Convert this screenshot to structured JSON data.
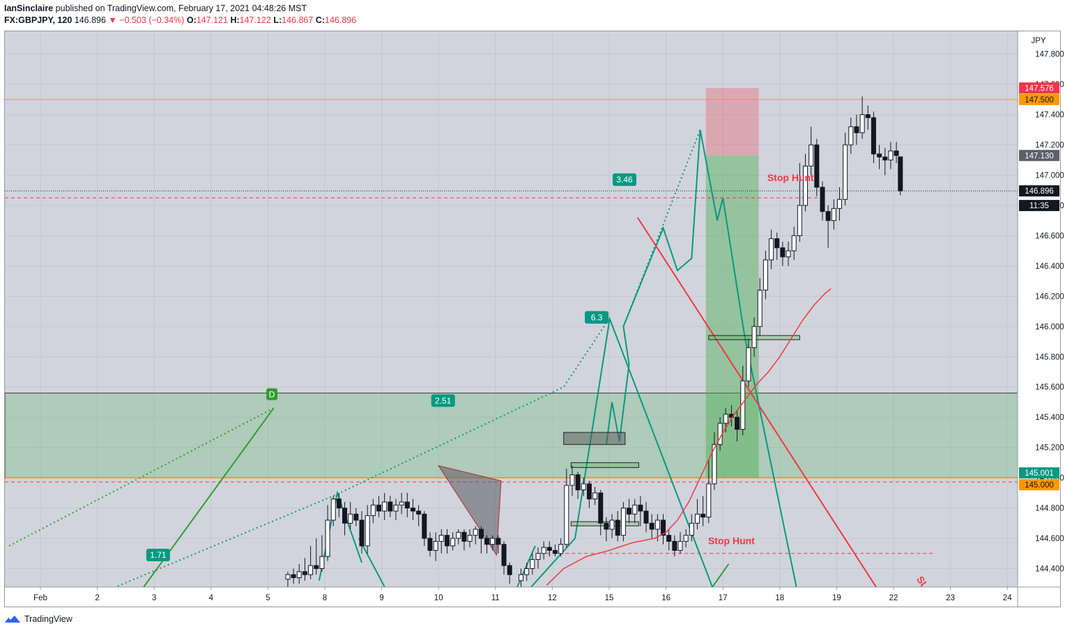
{
  "header": {
    "author": "IanSinclaire",
    "published_text": "published on TradingView.com, February 17, 2021 04:48:26 MST",
    "symbol": "FX:GBPJPY, 120",
    "last": "146.896",
    "change_arrow": "▼",
    "change": "−0.503 (−0.34%)",
    "o_label": "O:",
    "o_value": "147.121",
    "h_label": "H:",
    "h_value": "147.122",
    "l_label": "L:",
    "l_value": "146.867",
    "c_label": "C:",
    "c_value": "146.896"
  },
  "footer": {
    "brand": "TradingView",
    "logo_icon": "tradingview-logo-icon"
  },
  "chart_data": {
    "type": "candlestick",
    "currency": "JPY",
    "ylim": [
      144.275,
      147.92
    ],
    "y_ticks": [
      144.4,
      144.6,
      144.8,
      145.0,
      145.2,
      145.4,
      145.6,
      145.8,
      146.0,
      146.2,
      146.4,
      146.6,
      146.8,
      147.0,
      147.2,
      147.4,
      147.6,
      147.8
    ],
    "y_tick_labels": [
      "144.400",
      "144.600",
      "144.800",
      "145.000",
      "145.200",
      "145.400",
      "145.600",
      "145.800",
      "146.000",
      "146.200",
      "146.400",
      "146.600",
      "146.800",
      "147.000",
      "147.200",
      "147.400",
      "147.600",
      "147.800"
    ],
    "x_labels": [
      "Feb",
      "2",
      "3",
      "4",
      "5",
      "8",
      "9",
      "10",
      "11",
      "12",
      "15",
      "16",
      "17",
      "18",
      "19",
      "22",
      "23",
      "24"
    ],
    "price_labels": [
      {
        "value": 147.576,
        "text": "147.576",
        "bg": "#f23645",
        "fg": "#ffffff"
      },
      {
        "value": 147.5,
        "text": "147.500",
        "bg": "#ff9800",
        "fg": "#131722"
      },
      {
        "value": 147.13,
        "text": "147.130",
        "bg": "#5d606b",
        "fg": "#ffffff"
      },
      {
        "value": 146.896,
        "text": "146.896",
        "bg": "#131722",
        "fg": "#ffffff"
      },
      {
        "value": 146.8,
        "text": "11:35",
        "bg": "#131722",
        "fg": "#ffffff"
      },
      {
        "value": 145.001,
        "text": "145.001",
        "bg": "#089981",
        "fg": "#ffffff"
      },
      {
        "value": 145.0,
        "text": "145.000",
        "bg": "#ff9800",
        "fg": "#131722"
      }
    ],
    "annotations": [
      {
        "text": "Stop Hunt",
        "color": "#f23645"
      },
      {
        "text": "Stop Hunt",
        "color": "#f23645"
      },
      {
        "text": "SL",
        "color": "#f23645"
      }
    ],
    "ratio_badges": [
      "3.46",
      "6.3",
      "2.51",
      "1.71"
    ],
    "point_label": "D",
    "horizontal_levels": [
      147.5,
      145.0,
      146.85,
      144.5
    ],
    "zone": {
      "from": 145.0,
      "to": 145.56
    },
    "position": {
      "entry": 147.13,
      "stop": 147.576,
      "target": 145.001
    },
    "candles": [
      [
        4.35,
        144.33,
        144.36,
        144.25,
        144.38
      ],
      [
        4.45,
        144.36,
        144.34,
        144.3,
        144.4
      ],
      [
        4.55,
        144.34,
        144.38,
        144.3,
        144.43
      ],
      [
        4.65,
        144.38,
        144.36,
        144.32,
        144.47
      ],
      [
        4.75,
        144.36,
        144.42,
        144.33,
        144.55
      ],
      [
        4.85,
        144.42,
        144.4,
        144.36,
        144.6
      ],
      [
        4.95,
        144.4,
        144.48,
        144.38,
        144.62
      ],
      [
        5.05,
        144.48,
        144.72,
        144.45,
        144.82
      ],
      [
        5.15,
        144.72,
        144.86,
        144.68,
        144.88
      ],
      [
        5.25,
        144.86,
        144.8,
        144.74,
        144.9
      ],
      [
        5.35,
        144.8,
        144.7,
        144.62,
        144.84
      ],
      [
        5.45,
        144.7,
        144.76,
        144.66,
        144.84
      ],
      [
        5.55,
        144.76,
        144.72,
        144.68,
        144.8
      ],
      [
        5.65,
        144.72,
        144.55,
        144.5,
        144.78
      ],
      [
        5.75,
        144.55,
        144.75,
        144.5,
        144.82
      ],
      [
        5.85,
        144.75,
        144.82,
        144.7,
        144.86
      ],
      [
        5.95,
        144.82,
        144.78,
        144.74,
        144.88
      ],
      [
        6.05,
        144.78,
        144.84,
        144.72,
        144.9
      ],
      [
        6.15,
        144.84,
        144.78,
        144.74,
        144.88
      ],
      [
        6.25,
        144.78,
        144.82,
        144.72,
        144.86
      ],
      [
        6.35,
        144.82,
        144.84,
        144.76,
        144.9
      ],
      [
        6.45,
        144.84,
        144.8,
        144.74,
        144.9
      ],
      [
        6.55,
        144.8,
        144.78,
        144.72,
        144.86
      ],
      [
        6.65,
        144.78,
        144.76,
        144.68,
        144.82
      ],
      [
        6.75,
        144.76,
        144.6,
        144.55,
        144.78
      ],
      [
        6.85,
        144.6,
        144.52,
        144.48,
        144.64
      ],
      [
        6.95,
        144.52,
        144.58,
        144.45,
        144.64
      ],
      [
        7.05,
        144.58,
        144.62,
        144.5,
        144.66
      ],
      [
        7.15,
        144.62,
        144.55,
        144.5,
        144.66
      ],
      [
        7.25,
        144.55,
        144.6,
        144.52,
        144.64
      ],
      [
        7.35,
        144.6,
        144.64,
        144.56,
        144.66
      ],
      [
        7.45,
        144.64,
        144.58,
        144.52,
        144.66
      ],
      [
        7.55,
        144.58,
        144.62,
        144.54,
        144.66
      ],
      [
        7.65,
        144.62,
        144.66,
        144.56,
        144.68
      ],
      [
        7.75,
        144.66,
        144.6,
        144.5,
        144.68
      ],
      [
        7.85,
        144.6,
        144.56,
        144.5,
        144.62
      ],
      [
        7.95,
        144.56,
        144.6,
        144.52,
        144.62
      ],
      [
        8.05,
        144.6,
        144.56,
        144.5,
        144.62
      ],
      [
        8.15,
        144.56,
        144.42,
        144.36,
        144.58
      ],
      [
        8.25,
        144.42,
        144.36,
        144.3,
        144.44
      ],
      [
        8.45,
        144.32,
        144.36,
        144.28,
        144.4
      ],
      [
        8.55,
        144.36,
        144.4,
        144.32,
        144.44
      ],
      [
        8.65,
        144.4,
        144.46,
        144.36,
        144.5
      ],
      [
        8.75,
        144.46,
        144.5,
        144.4,
        144.54
      ],
      [
        8.85,
        144.5,
        144.54,
        144.46,
        144.58
      ],
      [
        8.95,
        144.54,
        144.52,
        144.48,
        144.58
      ],
      [
        9.05,
        144.52,
        144.5,
        144.48,
        144.56
      ],
      [
        9.15,
        144.5,
        144.56,
        144.48,
        144.6
      ],
      [
        9.25,
        144.56,
        144.95,
        144.54,
        145.06
      ],
      [
        9.35,
        144.95,
        145.02,
        144.88,
        145.08
      ],
      [
        9.45,
        145.02,
        144.92,
        144.86,
        145.04
      ],
      [
        9.55,
        144.92,
        144.96,
        144.88,
        145.0
      ],
      [
        9.65,
        144.96,
        144.86,
        144.8,
        144.98
      ],
      [
        9.75,
        144.86,
        144.9,
        144.82,
        144.94
      ],
      [
        9.85,
        144.9,
        144.7,
        144.62,
        144.92
      ],
      [
        9.95,
        144.7,
        144.66,
        144.58,
        144.74
      ],
      [
        10.05,
        144.66,
        144.72,
        144.6,
        144.76
      ],
      [
        10.15,
        144.72,
        144.62,
        144.58,
        144.78
      ],
      [
        10.25,
        144.62,
        144.8,
        144.58,
        144.84
      ],
      [
        10.35,
        144.8,
        144.76,
        144.7,
        144.86
      ],
      [
        10.45,
        144.76,
        144.82,
        144.7,
        144.86
      ],
      [
        10.55,
        144.82,
        144.78,
        144.68,
        144.88
      ],
      [
        10.65,
        144.78,
        144.7,
        144.64,
        144.84
      ],
      [
        10.75,
        144.7,
        144.66,
        144.6,
        144.76
      ],
      [
        10.85,
        144.66,
        144.72,
        144.58,
        144.76
      ],
      [
        10.95,
        144.72,
        144.62,
        144.56,
        144.76
      ],
      [
        11.05,
        144.62,
        144.58,
        144.52,
        144.66
      ],
      [
        11.15,
        144.58,
        144.52,
        144.48,
        144.62
      ],
      [
        11.25,
        144.52,
        144.58,
        144.5,
        144.64
      ],
      [
        11.35,
        144.58,
        144.62,
        144.54,
        144.66
      ],
      [
        11.45,
        144.62,
        144.7,
        144.58,
        144.76
      ],
      [
        11.55,
        144.7,
        144.76,
        144.66,
        144.86
      ],
      [
        11.65,
        144.76,
        144.74,
        144.68,
        144.88
      ],
      [
        11.75,
        144.74,
        144.96,
        144.7,
        145.12
      ],
      [
        11.85,
        144.96,
        145.22,
        144.92,
        145.3
      ],
      [
        11.95,
        145.22,
        145.36,
        145.18,
        145.4
      ],
      [
        12.05,
        145.36,
        145.42,
        145.3,
        145.46
      ],
      [
        12.15,
        145.42,
        145.4,
        145.34,
        145.48
      ],
      [
        12.25,
        145.4,
        145.32,
        145.24,
        145.44
      ],
      [
        12.35,
        145.32,
        145.64,
        145.28,
        145.74
      ],
      [
        12.45,
        145.64,
        145.86,
        145.6,
        145.92
      ],
      [
        12.55,
        145.86,
        146.0,
        145.8,
        146.06
      ],
      [
        12.65,
        146.0,
        146.24,
        145.94,
        146.32
      ],
      [
        12.75,
        146.24,
        146.44,
        146.18,
        146.5
      ],
      [
        12.85,
        146.44,
        146.58,
        146.38,
        146.64
      ],
      [
        12.95,
        146.58,
        146.52,
        146.44,
        146.62
      ],
      [
        13.05,
        146.52,
        146.46,
        146.4,
        146.56
      ],
      [
        13.15,
        146.46,
        146.5,
        146.4,
        146.56
      ],
      [
        13.25,
        146.5,
        146.6,
        146.44,
        146.66
      ],
      [
        13.35,
        146.6,
        146.8,
        146.56,
        147.08
      ],
      [
        13.45,
        146.8,
        147.06,
        146.76,
        147.14
      ],
      [
        13.55,
        147.06,
        147.2,
        147.0,
        147.32
      ],
      [
        13.65,
        147.2,
        146.92,
        146.86,
        147.24
      ],
      [
        13.75,
        146.92,
        146.76,
        146.7,
        146.96
      ],
      [
        13.85,
        146.76,
        146.7,
        146.52,
        146.8
      ],
      [
        13.95,
        146.7,
        146.78,
        146.64,
        146.84
      ],
      [
        14.05,
        146.78,
        146.84,
        146.7,
        146.92
      ],
      [
        14.15,
        146.84,
        147.2,
        146.8,
        147.28
      ],
      [
        14.25,
        147.2,
        147.32,
        147.14,
        147.38
      ],
      [
        14.35,
        147.32,
        147.28,
        147.2,
        147.4
      ],
      [
        14.45,
        147.28,
        147.4,
        147.24,
        147.52
      ],
      [
        14.55,
        147.4,
        147.38,
        147.3,
        147.46
      ],
      [
        14.65,
        147.38,
        147.14,
        147.08,
        147.42
      ],
      [
        14.75,
        147.14,
        147.12,
        147.04,
        147.2
      ],
      [
        14.85,
        147.12,
        147.1,
        147.0,
        147.18
      ],
      [
        14.95,
        147.1,
        147.16,
        147.04,
        147.22
      ],
      [
        15.05,
        147.16,
        147.13,
        147.08,
        147.22
      ],
      [
        15.12,
        147.121,
        146.896,
        146.867,
        147.122
      ]
    ],
    "moving_average": [
      [
        8.9,
        144.29
      ],
      [
        9.2,
        144.4
      ],
      [
        9.6,
        144.48
      ],
      [
        10.0,
        144.52
      ],
      [
        10.4,
        144.57
      ],
      [
        10.8,
        144.6
      ],
      [
        11.0,
        144.64
      ],
      [
        11.2,
        144.72
      ],
      [
        11.4,
        144.84
      ],
      [
        11.6,
        145.0
      ],
      [
        11.8,
        145.16
      ],
      [
        12.0,
        145.3
      ],
      [
        12.2,
        145.42
      ],
      [
        12.4,
        145.52
      ],
      [
        12.6,
        145.62
      ],
      [
        12.8,
        145.7
      ],
      [
        13.0,
        145.8
      ],
      [
        13.2,
        145.92
      ],
      [
        13.4,
        146.04
      ],
      [
        13.6,
        146.14
      ],
      [
        13.8,
        146.22
      ],
      [
        13.9,
        146.25
      ]
    ]
  }
}
